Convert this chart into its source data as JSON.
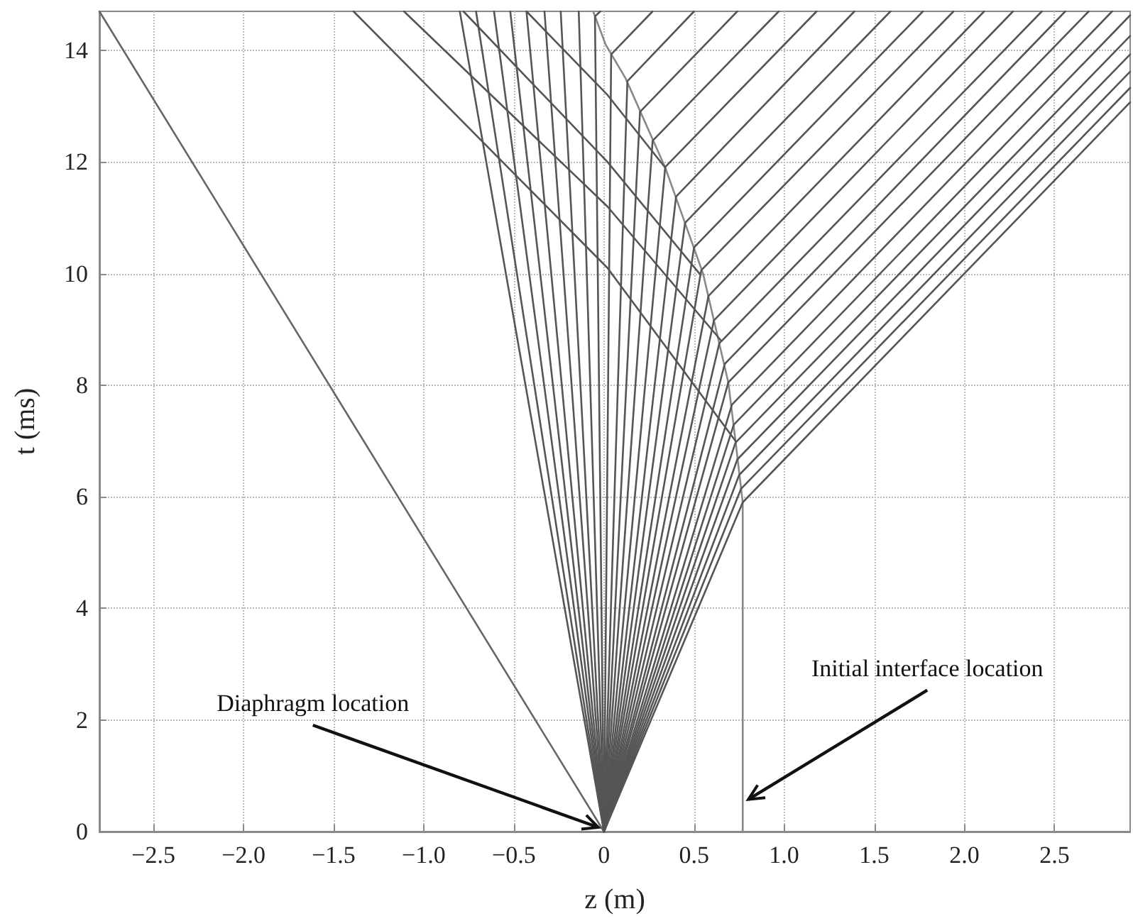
{
  "chart_data": {
    "type": "line",
    "xlabel": "z (m)",
    "ylabel": "t (ms)",
    "xlim": [
      -2.8,
      2.92
    ],
    "ylim": [
      0,
      14.7
    ],
    "xticks": [
      {
        "value": -2.5,
        "label": "−2.5"
      },
      {
        "value": -2,
        "label": "−2.0"
      },
      {
        "value": -1.5,
        "label": "−1.5"
      },
      {
        "value": -1,
        "label": "−1.0"
      },
      {
        "value": -0.5,
        "label": "−0.5"
      },
      {
        "value": 0,
        "label": "0"
      },
      {
        "value": 0.5,
        "label": "0.5"
      },
      {
        "value": 1,
        "label": "1.0"
      },
      {
        "value": 1.5,
        "label": "1.5"
      },
      {
        "value": 2,
        "label": "2.0"
      },
      {
        "value": 2.5,
        "label": "2.5"
      }
    ],
    "yticks": [
      0,
      2,
      4,
      6,
      8,
      10,
      12,
      14
    ],
    "grid": true,
    "marker": "none",
    "annotations": [
      {
        "text": "Diaphragm location",
        "x": 0,
        "y": 0
      },
      {
        "text": "Initial interface location",
        "x": 0.77,
        "y": 0.5
      }
    ],
    "series": [
      {
        "color": "#666666",
        "x": [
          0,
          -2.8
        ],
        "values": [
          0,
          14.7
        ]
      },
      {
        "color": "#888888",
        "x": [
          0.77,
          0.77,
          0.73,
          0.69,
          0.55,
          0.34,
          0.12,
          0.01,
          -0.06
        ],
        "values": [
          0,
          5.9,
          7.0,
          8.05,
          10.0,
          11.9,
          13.5,
          14.1,
          14.7
        ]
      },
      {
        "color": "#555555",
        "x": [
          0.73,
          0.02,
          -1.39
        ],
        "values": [
          7.0,
          10.1,
          14.7
        ]
      },
      {
        "color": "#555555",
        "x": [
          0.65,
          0.02,
          -1.11
        ],
        "values": [
          8.8,
          11.2,
          14.7
        ]
      },
      {
        "color": "#555555",
        "x": [
          0.53,
          0.02,
          -0.78
        ],
        "values": [
          10.0,
          12.0,
          14.7
        ]
      },
      {
        "color": "#555555",
        "x": [
          0.34,
          0.02,
          -0.43
        ],
        "values": [
          11.9,
          13.2,
          14.7
        ]
      },
      {
        "color": "#555555",
        "x": [
          0,
          -0.8
        ],
        "values": [
          0,
          14.7
        ]
      },
      {
        "color": "#555555",
        "x": [
          0,
          -0.71
        ],
        "values": [
          0,
          14.7
        ]
      },
      {
        "color": "#555555",
        "x": [
          0,
          -0.61
        ],
        "values": [
          0,
          14.7
        ]
      },
      {
        "color": "#555555",
        "x": [
          0,
          -0.52
        ],
        "values": [
          0,
          14.7
        ]
      },
      {
        "color": "#555555",
        "x": [
          0,
          -0.43
        ],
        "values": [
          0,
          14.7
        ]
      },
      {
        "color": "#555555",
        "x": [
          0,
          -0.33
        ],
        "values": [
          0,
          14.7
        ]
      },
      {
        "color": "#555555",
        "x": [
          0,
          -0.24
        ],
        "values": [
          0,
          14.7
        ]
      },
      {
        "color": "#555555",
        "x": [
          0,
          -0.14
        ],
        "values": [
          0,
          14.7
        ]
      },
      {
        "color": "#555555",
        "x": [
          0,
          -0.05,
          -0.02
        ],
        "values": [
          0,
          14.61,
          14.7
        ]
      },
      {
        "color": "#555555",
        "x": [
          0,
          0.04,
          0.27
        ],
        "values": [
          0,
          13.93,
          14.7
        ]
      },
      {
        "color": "#555555",
        "x": [
          0,
          0.13,
          0.5
        ],
        "values": [
          0,
          13.45,
          14.7
        ]
      },
      {
        "color": "#555555",
        "x": [
          0,
          0.2,
          0.74
        ],
        "values": [
          0,
          12.9,
          14.7
        ]
      },
      {
        "color": "#555555",
        "x": [
          0,
          0.27,
          0.97
        ],
        "values": [
          0,
          12.38,
          14.7
        ]
      },
      {
        "color": "#555555",
        "x": [
          0,
          0.34,
          1.18
        ],
        "values": [
          0,
          11.91,
          14.7
        ]
      },
      {
        "color": "#555555",
        "x": [
          0,
          0.4,
          1.39
        ],
        "values": [
          0,
          11.38,
          14.7
        ]
      },
      {
        "color": "#555555",
        "x": [
          0,
          0.45,
          1.59
        ],
        "values": [
          0,
          10.91,
          14.7
        ]
      },
      {
        "color": "#555555",
        "x": [
          0,
          0.5,
          1.77
        ],
        "values": [
          0,
          10.47,
          14.7
        ]
      },
      {
        "color": "#555555",
        "x": [
          0,
          0.54,
          1.94
        ],
        "values": [
          0,
          10.06,
          14.7
        ]
      },
      {
        "color": "#555555",
        "x": [
          0,
          0.58,
          2.11
        ],
        "values": [
          0,
          9.6,
          14.7
        ]
      },
      {
        "color": "#555555",
        "x": [
          0,
          0.61,
          2.27
        ],
        "values": [
          0,
          9.16,
          14.7
        ]
      },
      {
        "color": "#555555",
        "x": [
          0,
          0.64,
          2.43
        ],
        "values": [
          0,
          8.75,
          14.7
        ]
      },
      {
        "color": "#555555",
        "x": [
          0,
          0.67,
          2.56
        ],
        "values": [
          0,
          8.38,
          14.7
        ]
      },
      {
        "color": "#555555",
        "x": [
          0,
          0.69,
          2.69
        ],
        "values": [
          0,
          8.05,
          14.7
        ]
      },
      {
        "color": "#555555",
        "x": [
          0,
          0.71,
          2.82
        ],
        "values": [
          0,
          7.65,
          14.7
        ]
      },
      {
        "color": "#555555",
        "x": [
          0,
          0.72,
          2.92
        ],
        "values": [
          0,
          7.29,
          14.63
        ]
      },
      {
        "color": "#555555",
        "x": [
          0,
          0.73,
          2.92
        ],
        "values": [
          0,
          6.97,
          14.26
        ]
      },
      {
        "color": "#555555",
        "x": [
          0,
          0.74,
          2.92
        ],
        "values": [
          0,
          6.67,
          13.93
        ]
      },
      {
        "color": "#555555",
        "x": [
          0,
          0.75,
          2.92
        ],
        "values": [
          0,
          6.39,
          13.62
        ]
      },
      {
        "color": "#555555",
        "x": [
          0,
          0.76,
          2.92
        ],
        "values": [
          0,
          6.14,
          13.33
        ]
      },
      {
        "color": "#555555",
        "x": [
          0,
          0.77,
          2.92
        ],
        "values": [
          0,
          5.9,
          13.07
        ]
      }
    ]
  }
}
